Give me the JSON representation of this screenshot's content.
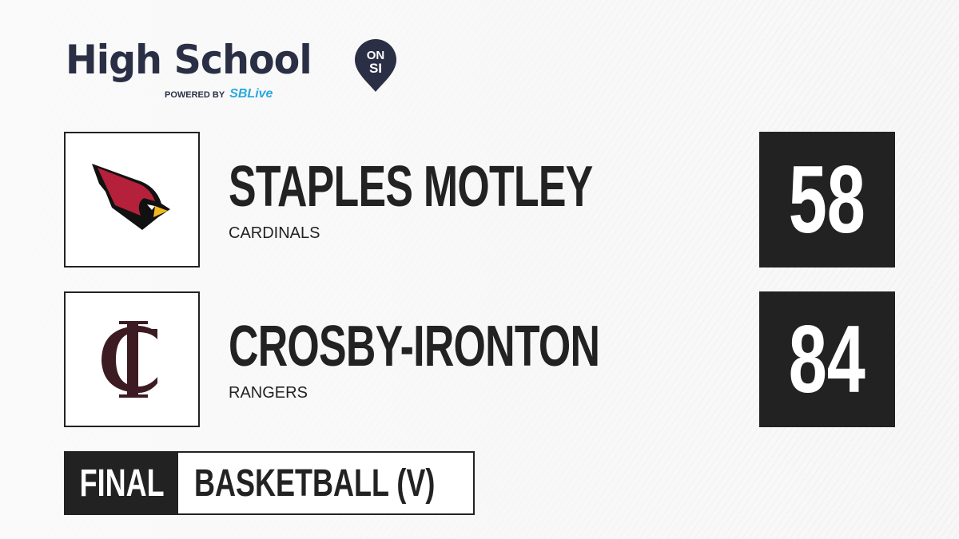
{
  "brand": {
    "title": "High School",
    "badge_top": "ON",
    "badge_bottom": "SI",
    "powered_by": "POWERED BY",
    "partner": "SBLive"
  },
  "teams": [
    {
      "name": "STAPLES MOTLEY",
      "mascot": "CARDINALS",
      "score": "58",
      "logo": "cardinal-head",
      "color": "#b5203a"
    },
    {
      "name": "CROSBY-IRONTON",
      "mascot": "RANGERS",
      "score": "84",
      "logo": "ic-monogram",
      "color": "#3d1b22"
    }
  ],
  "status": {
    "label": "FINAL",
    "sport": "BASKETBALL (V)"
  }
}
